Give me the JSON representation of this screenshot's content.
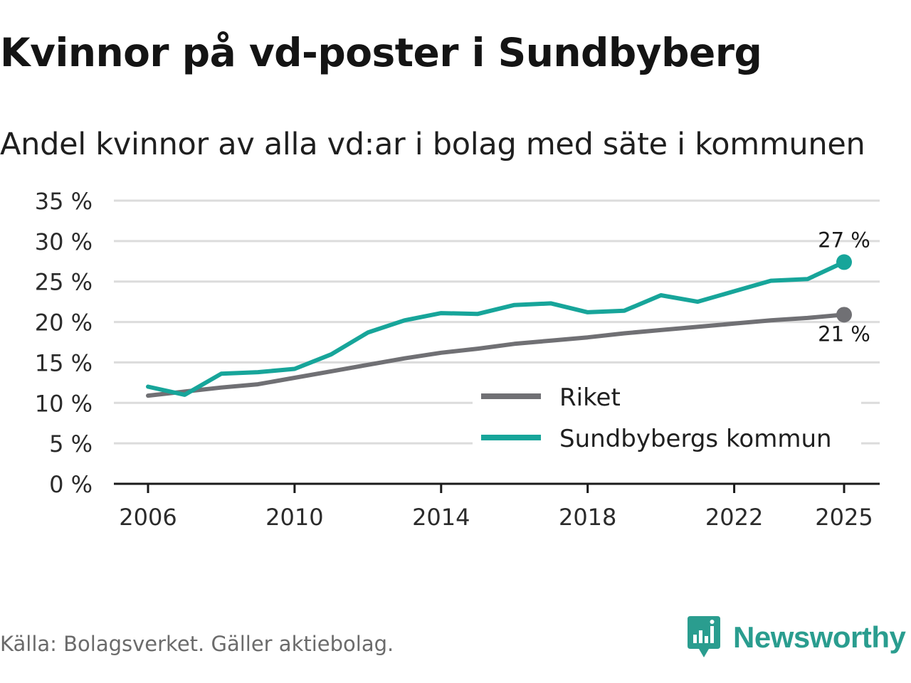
{
  "colors": {
    "riket": "#707074",
    "kommun": "#17a59a",
    "grid": "#dcdcdc",
    "axis": "#1a1a1a",
    "brand": "#2a9d8f"
  },
  "chart_data": {
    "type": "line",
    "title": "Kvinnor på vd-poster i Sundbyberg",
    "subtitle": "Andel kvinnor av alla vd:ar i bolag med säte i kommunen",
    "x": [
      2006,
      2007,
      2008,
      2009,
      2010,
      2011,
      2012,
      2013,
      2014,
      2015,
      2016,
      2017,
      2018,
      2019,
      2020,
      2021,
      2022,
      2023,
      2024,
      2025
    ],
    "x_ticks": [
      2006,
      2010,
      2014,
      2018,
      2022,
      2025
    ],
    "x_tick_labels": [
      "2006",
      "2010",
      "2014",
      "2018",
      "2022",
      "2025"
    ],
    "ylim": [
      0,
      35
    ],
    "y_ticks": [
      0,
      5,
      10,
      15,
      20,
      25,
      30,
      35
    ],
    "y_tick_labels": [
      "0 %",
      "5 %",
      "10 %",
      "15 %",
      "20 %",
      "25 %",
      "30 %",
      "35 %"
    ],
    "grid": true,
    "legend_position": "bottom-right",
    "series": [
      {
        "name": "Riket",
        "color_key": "riket",
        "values": [
          10.9,
          11.4,
          11.9,
          12.3,
          13.1,
          13.9,
          14.7,
          15.5,
          16.2,
          16.7,
          17.3,
          17.7,
          18.1,
          18.6,
          19.0,
          19.4,
          19.8,
          20.2,
          20.5,
          20.9
        ],
        "end_label": "21 %",
        "end_label_position": "below"
      },
      {
        "name": "Sundbybergs kommun",
        "color_key": "kommun",
        "values": [
          12.0,
          11.0,
          13.6,
          13.8,
          14.2,
          16.0,
          18.7,
          20.2,
          21.1,
          21.0,
          22.1,
          22.3,
          21.2,
          21.4,
          23.3,
          22.5,
          23.8,
          25.1,
          25.3,
          27.4
        ],
        "end_label": "27 %",
        "end_label_position": "above"
      }
    ]
  },
  "footer": {
    "source": "Källa: Bolagsverket. Gäller aktiebolag.",
    "brand": "Newsworthy",
    "brand_icon": "newsworthy-logo-icon"
  }
}
